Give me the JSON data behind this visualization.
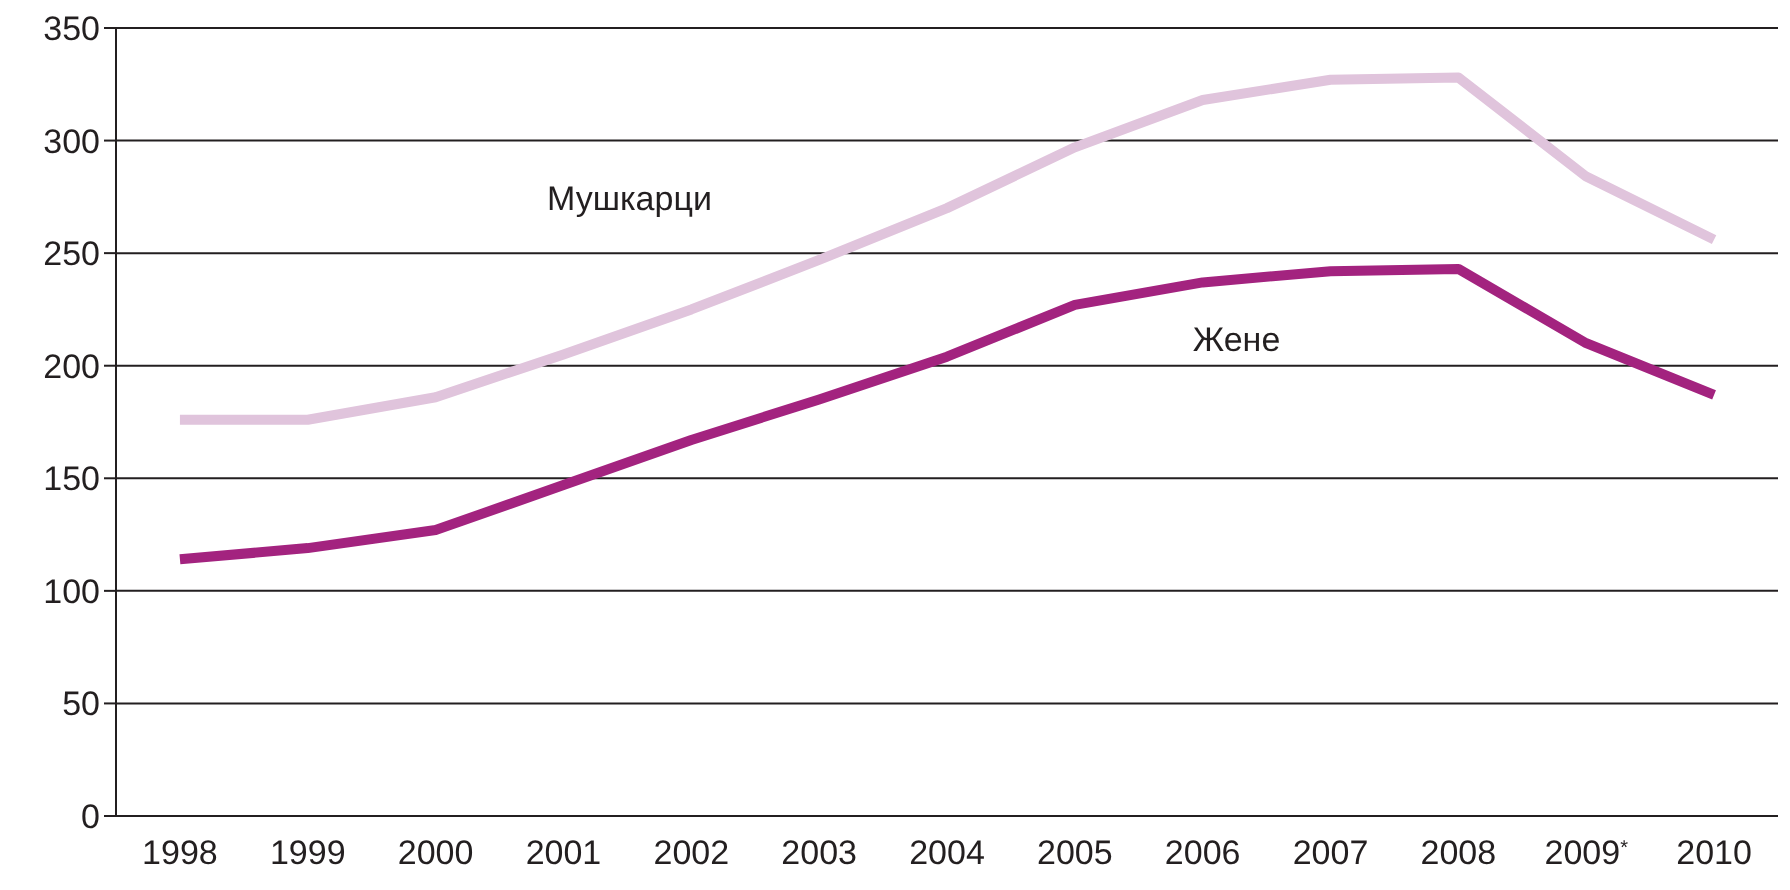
{
  "chart_data": {
    "type": "line",
    "categories": [
      "1998",
      "1999",
      "2000",
      "2001",
      "2002",
      "2003",
      "2004",
      "2005",
      "2006",
      "2007",
      "2008",
      "2009$^{*}$",
      "2010"
    ],
    "series": [
      {
        "name": "Мушкарци",
        "color": "#e0c4dc",
        "values": [
          176,
          176,
          186,
          205,
          225,
          247,
          270,
          297,
          318,
          327,
          328,
          284,
          256
        ]
      },
      {
        "name": "Жене",
        "color": "#a3237f",
        "values": [
          114,
          119,
          127,
          147,
          167,
          185,
          204,
          227,
          237,
          242,
          243,
          210,
          187
        ]
      }
    ],
    "ylim": [
      0,
      350
    ],
    "yticks": [
      0,
      50,
      100,
      150,
      200,
      250,
      300,
      350
    ],
    "grid": "y",
    "legend": false,
    "marker": "none",
    "line_style": "solid"
  }
}
